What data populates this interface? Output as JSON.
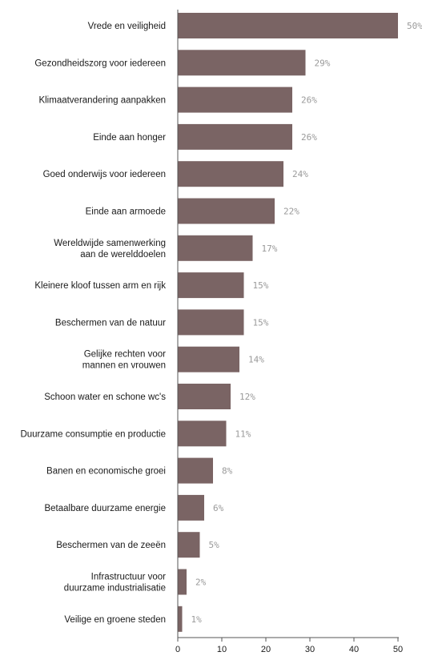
{
  "chart_data": {
    "type": "bar",
    "orientation": "horizontal",
    "categories": [
      [
        "Vrede en veiligheid"
      ],
      [
        "Gezondheidszorg voor iedereen"
      ],
      [
        "Klimaatverandering aanpakken"
      ],
      [
        "Einde aan honger"
      ],
      [
        "Goed onderwijs voor iedereen"
      ],
      [
        "Einde aan armoede"
      ],
      [
        "Wereldwijde samenwerking",
        "aan de werelddoelen"
      ],
      [
        "Kleinere kloof tussen arm en rijk"
      ],
      [
        "Beschermen van de natuur"
      ],
      [
        "Gelijke rechten voor",
        "mannen en vrouwen"
      ],
      [
        "Schoon water en schone wc's"
      ],
      [
        "Duurzame consumptie en productie"
      ],
      [
        "Banen en economische groei"
      ],
      [
        "Betaalbare duurzame energie"
      ],
      [
        "Beschermen van de zeeën"
      ],
      [
        "Infrastructuur voor",
        "duurzame industrialisatie"
      ],
      [
        "Veilige en groene steden"
      ]
    ],
    "values": [
      50,
      29,
      26,
      26,
      24,
      22,
      17,
      15,
      15,
      14,
      12,
      11,
      8,
      6,
      5,
      2,
      1
    ],
    "value_labels": [
      "50%",
      "29%",
      "26%",
      "26%",
      "24%",
      "22%",
      "17%",
      "15%",
      "15%",
      "14%",
      "12%",
      "11%",
      "8%",
      "6%",
      "5%",
      "2%",
      "1%"
    ],
    "xlim": [
      0,
      50
    ],
    "xticks": [
      "0",
      "10",
      "20",
      "30",
      "40",
      "50"
    ],
    "grid": false,
    "colors": {
      "bar": "#7a6464",
      "axis": "#555555",
      "value_label": "#9a9a9a",
      "text": "#1a1a1a"
    }
  }
}
